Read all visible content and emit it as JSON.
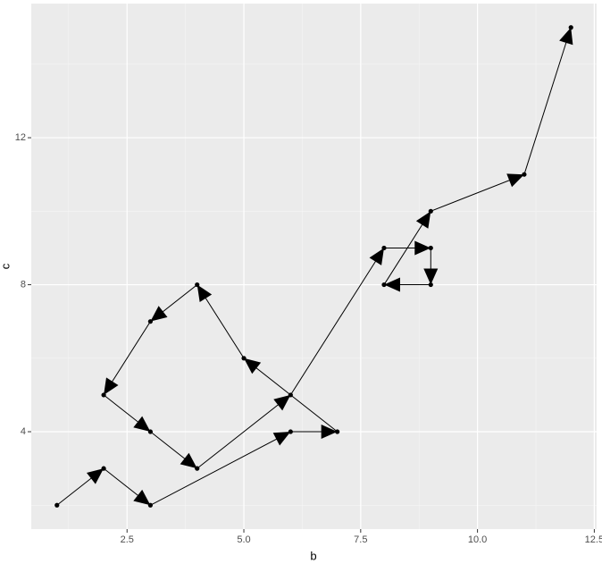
{
  "chart_data": {
    "type": "line",
    "x_label": "b",
    "y_label": "c",
    "x": [
      1,
      2,
      3,
      6,
      7,
      5,
      4,
      3,
      2,
      3,
      4,
      6,
      8,
      9,
      9,
      8,
      9,
      11,
      12
    ],
    "values": [
      2,
      3,
      2,
      4,
      4,
      6,
      8,
      7,
      5,
      4,
      3,
      5,
      9,
      9,
      8,
      8,
      10,
      11,
      15
    ],
    "color": "#000000",
    "xlim": [
      0.45,
      12.55
    ],
    "ylim": [
      1.35,
      15.65
    ],
    "xticks": [
      {
        "value": 2.5,
        "label": "2.5"
      },
      {
        "value": 5,
        "label": "5.0"
      },
      {
        "value": 7.5,
        "label": "7.5"
      },
      {
        "value": 10,
        "label": "10.0"
      },
      {
        "value": 12.5,
        "label": "12.5"
      }
    ],
    "yticks": [
      4,
      8,
      12
    ],
    "grid": true,
    "arrows": true
  }
}
